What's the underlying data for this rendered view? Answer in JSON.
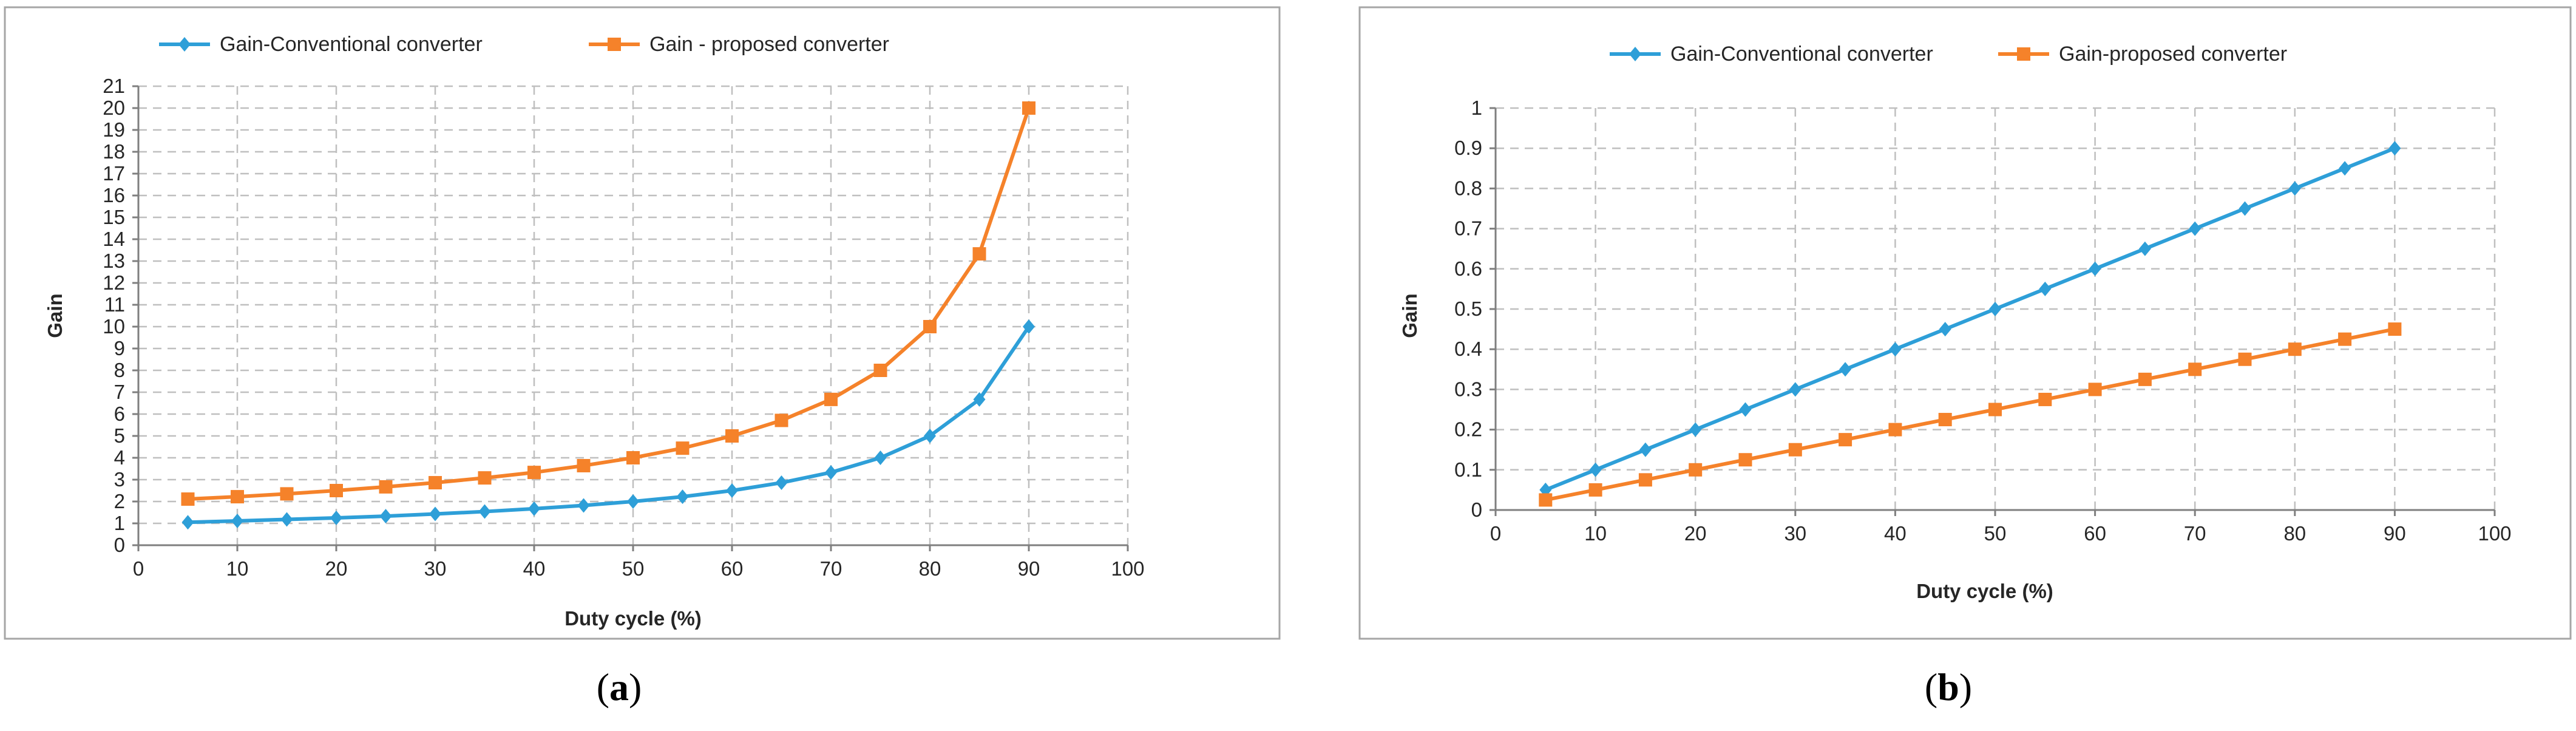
{
  "chart_data": [
    {
      "type": "line",
      "xlabel": "Duty cycle (%)",
      "ylabel": "Gain",
      "xlim": [
        0,
        100
      ],
      "ylim": [
        0,
        21
      ],
      "x_ticks": [
        0,
        10,
        20,
        30,
        40,
        50,
        60,
        70,
        80,
        90,
        100
      ],
      "y_ticks": [
        0,
        1,
        2,
        3,
        4,
        5,
        6,
        7,
        8,
        9,
        10,
        11,
        12,
        13,
        14,
        15,
        16,
        17,
        18,
        19,
        20,
        21
      ],
      "grid": true,
      "legend_position": "top",
      "x": [
        5,
        10,
        15,
        20,
        25,
        30,
        35,
        40,
        45,
        50,
        55,
        60,
        65,
        70,
        75,
        80,
        85,
        90
      ],
      "series": [
        {
          "name": "Gain-Conventional converter",
          "color": "#2e9fd8",
          "marker": "diamond",
          "values": [
            1.05,
            1.11,
            1.18,
            1.25,
            1.33,
            1.43,
            1.54,
            1.67,
            1.82,
            2.0,
            2.22,
            2.5,
            2.86,
            3.33,
            4.0,
            5.0,
            6.67,
            10.0
          ]
        },
        {
          "name": "Gain - proposed converter",
          "color": "#f5822a",
          "marker": "square",
          "values": [
            2.11,
            2.22,
            2.35,
            2.5,
            2.67,
            2.86,
            3.08,
            3.33,
            3.64,
            4.0,
            4.44,
            5.0,
            5.71,
            6.67,
            8.0,
            10.0,
            13.33,
            20.0
          ]
        }
      ]
    },
    {
      "type": "line",
      "xlabel": "Duty cycle (%)",
      "ylabel": "Gain",
      "xlim": [
        0,
        100
      ],
      "ylim": [
        0,
        1
      ],
      "x_ticks": [
        0,
        10,
        20,
        30,
        40,
        50,
        60,
        70,
        80,
        90,
        100
      ],
      "y_ticks": [
        0,
        0.1,
        0.2,
        0.3,
        0.4,
        0.5,
        0.6,
        0.7,
        0.8,
        0.9,
        1
      ],
      "grid": true,
      "legend_position": "top",
      "x": [
        5,
        10,
        15,
        20,
        25,
        30,
        35,
        40,
        45,
        50,
        55,
        60,
        65,
        70,
        75,
        80,
        85,
        90
      ],
      "series": [
        {
          "name": "Gain-Conventional converter",
          "color": "#2e9fd8",
          "marker": "diamond",
          "values": [
            0.05,
            0.1,
            0.15,
            0.2,
            0.25,
            0.3,
            0.35,
            0.4,
            0.45,
            0.5,
            0.55,
            0.6,
            0.65,
            0.7,
            0.75,
            0.8,
            0.85,
            0.9
          ]
        },
        {
          "name": "Gain-proposed converter",
          "color": "#f5822a",
          "marker": "square",
          "values": [
            0.025,
            0.05,
            0.075,
            0.1,
            0.125,
            0.15,
            0.175,
            0.2,
            0.225,
            0.25,
            0.275,
            0.3,
            0.325,
            0.35,
            0.375,
            0.4,
            0.425,
            0.45
          ]
        }
      ]
    }
  ],
  "captions": {
    "a": "a",
    "b": "b"
  }
}
